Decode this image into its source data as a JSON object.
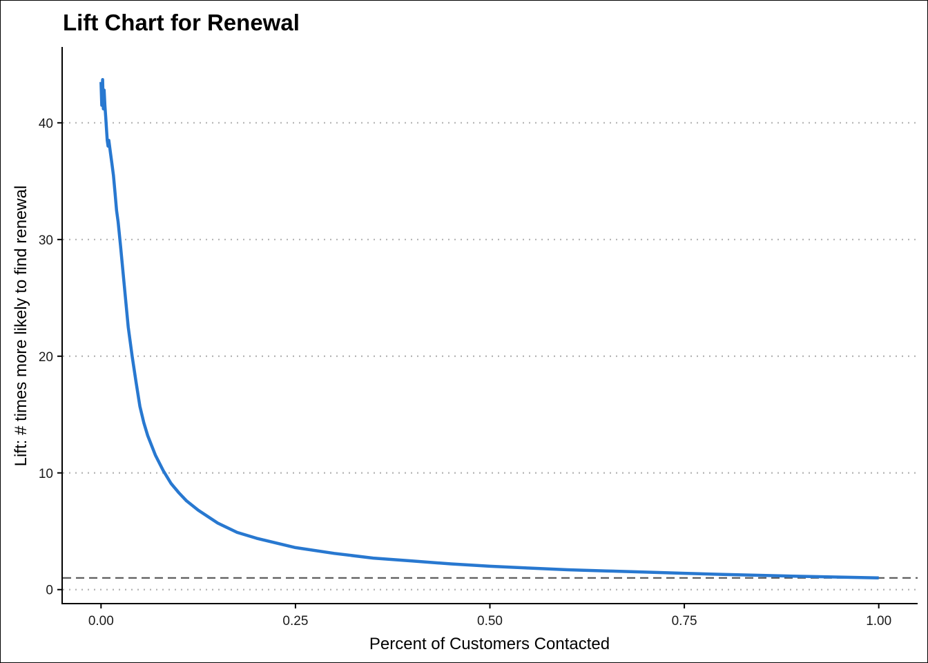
{
  "chart_data": {
    "type": "line",
    "title": "Lift Chart for Renewal",
    "xlabel": "Percent of Customers Contacted",
    "ylabel": "Lift: # times more likely to find renewal",
    "xlim": [
      -0.05,
      1.05
    ],
    "ylim": [
      -1.2,
      46.5
    ],
    "x_ticks": [
      0,
      0.25,
      0.5,
      0.75,
      1
    ],
    "x_tick_labels": [
      "0.00",
      "0.25",
      "0.50",
      "0.75",
      "1.00"
    ],
    "y_ticks": [
      0,
      10,
      20,
      30,
      40
    ],
    "y_tick_labels": [
      "0",
      "10",
      "20",
      "30",
      "40"
    ],
    "grid": "horizontal dotted major gridlines",
    "reference_line": {
      "y": 1,
      "style": "dashed",
      "color": "#555555"
    },
    "series": [
      {
        "color": "#2878d0",
        "x": [
          0,
          0.001,
          0.002,
          0.003,
          0.004,
          0.005,
          0.006,
          0.007,
          0.008,
          0.009,
          0.01,
          0.012,
          0.014,
          0.016,
          0.018,
          0.02,
          0.022,
          0.025,
          0.03,
          0.035,
          0.04,
          0.045,
          0.05,
          0.055,
          0.06,
          0.07,
          0.08,
          0.09,
          0.1,
          0.11,
          0.125,
          0.15,
          0.175,
          0.2,
          0.25,
          0.3,
          0.35,
          0.4,
          0.45,
          0.5,
          0.55,
          0.6,
          0.65,
          0.7,
          0.75,
          0.8,
          0.85,
          0.9,
          0.95,
          1.0
        ],
        "y": [
          43.5,
          41.5,
          43.7,
          41.2,
          42.8,
          41.5,
          40.5,
          39.5,
          38.5,
          38.0,
          38.5,
          37.5,
          36.5,
          35.5,
          34.0,
          32.5,
          31.5,
          29.5,
          26.0,
          22.5,
          20.0,
          17.8,
          15.7,
          14.3,
          13.2,
          11.5,
          10.2,
          9.1,
          8.3,
          7.6,
          6.8,
          5.7,
          4.9,
          4.4,
          3.6,
          3.1,
          2.7,
          2.45,
          2.2,
          2.0,
          1.85,
          1.7,
          1.6,
          1.5,
          1.4,
          1.3,
          1.22,
          1.14,
          1.07,
          1.0
        ]
      }
    ]
  }
}
